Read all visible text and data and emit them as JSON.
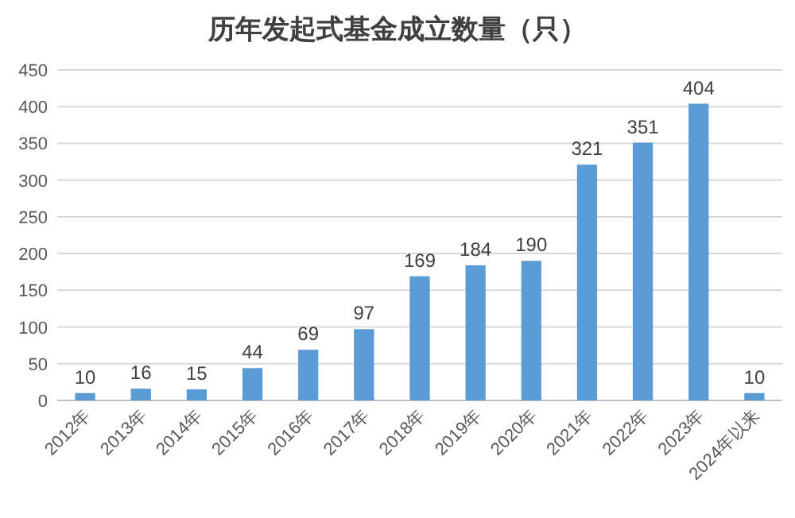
{
  "chart_data": {
    "type": "bar",
    "title": "历年发起式基金成立数量（只）",
    "categories": [
      "2012年",
      "2013年",
      "2014年",
      "2015年",
      "2016年",
      "2017年",
      "2018年",
      "2019年",
      "2020年",
      "2021年",
      "2022年",
      "2023年",
      "2024年以来"
    ],
    "values": [
      10,
      16,
      15,
      44,
      69,
      97,
      169,
      184,
      190,
      321,
      351,
      404,
      10
    ],
    "color": "#5b9bd5",
    "ylim": [
      0,
      450
    ],
    "yticks": [
      0,
      50,
      100,
      150,
      200,
      250,
      300,
      350,
      400,
      450
    ],
    "grid": "y",
    "data_labels": true
  }
}
